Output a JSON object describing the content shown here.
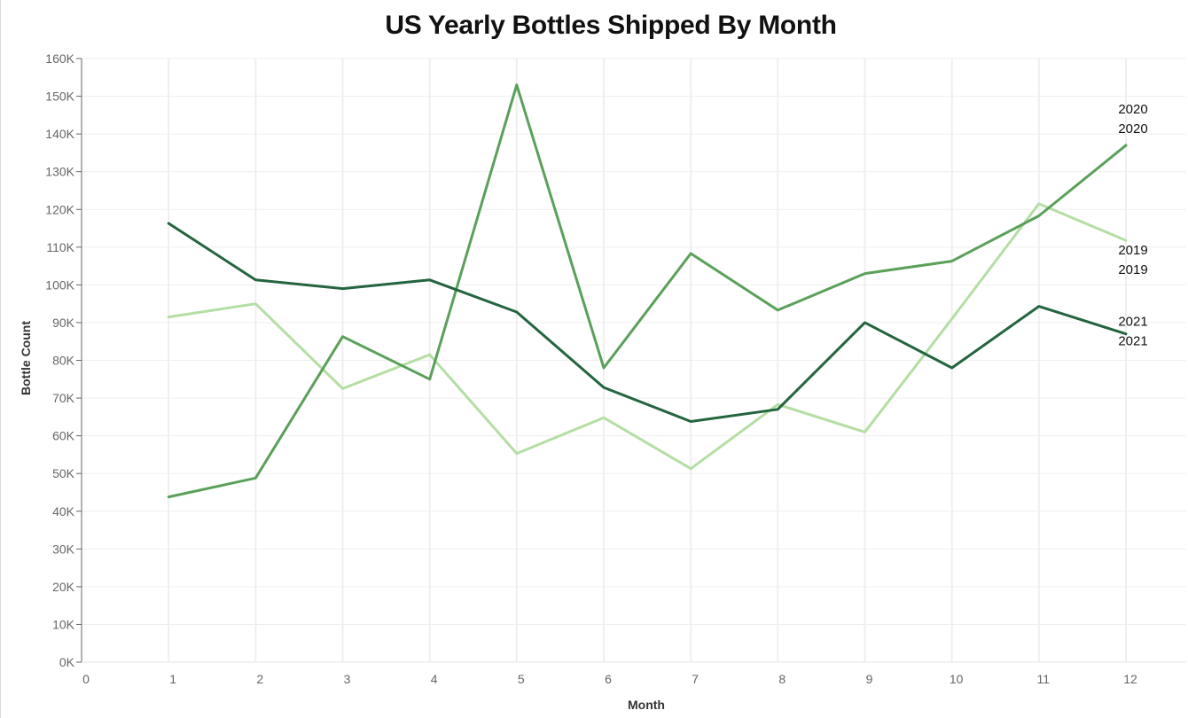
{
  "chart_data": {
    "type": "line",
    "title": "US Yearly Bottles Shipped By Month",
    "xlabel": "Month",
    "ylabel": "Bottle Count",
    "x": [
      1,
      2,
      3,
      4,
      5,
      6,
      7,
      8,
      9,
      10,
      11,
      12
    ],
    "xlim": [
      0,
      12
    ],
    "ylim": [
      0,
      160000
    ],
    "x_ticks": [
      "0",
      "1",
      "2",
      "3",
      "4",
      "5",
      "6",
      "7",
      "8",
      "9",
      "10",
      "11",
      "12"
    ],
    "y_ticks": [
      "0K",
      "10K",
      "20K",
      "30K",
      "40K",
      "50K",
      "60K",
      "70K",
      "80K",
      "90K",
      "100K",
      "110K",
      "120K",
      "130K",
      "140K",
      "150K",
      "160K"
    ],
    "grid": true,
    "series": [
      {
        "name": "2019",
        "color": "#b4dea4",
        "values": [
          91500,
          95000,
          72500,
          81500,
          55300,
          64800,
          51300,
          68300,
          61000,
          91000,
          121500,
          111800
        ],
        "end_labels": [
          "2019",
          "2019"
        ]
      },
      {
        "name": "2020",
        "color": "#5aa05a",
        "values": [
          43800,
          48800,
          86300,
          75000,
          153000,
          78000,
          108300,
          93300,
          103000,
          106300,
          118300,
          137000
        ],
        "end_labels": [
          "2020",
          "2020"
        ]
      },
      {
        "name": "2021",
        "color": "#24643f",
        "values": [
          116300,
          101300,
          99000,
          101300,
          92800,
          72800,
          63800,
          67000,
          90000,
          78000,
          94300,
          87000
        ],
        "end_labels": [
          "2021",
          "2021"
        ]
      }
    ]
  }
}
